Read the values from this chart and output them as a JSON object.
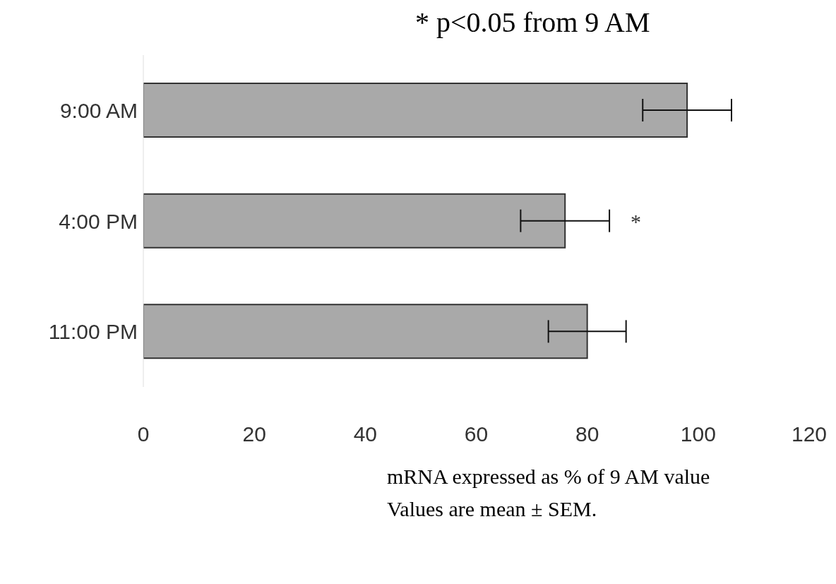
{
  "chart_data": {
    "type": "bar",
    "orientation": "horizontal",
    "title": "* p<0.05 from 9 AM",
    "categories": [
      "9:00 AM",
      "4:00 PM",
      "11:00 PM"
    ],
    "values": [
      98,
      76,
      80
    ],
    "errors": [
      8,
      8,
      7
    ],
    "color": "#a9a9a9",
    "xlim": [
      0,
      120
    ],
    "xticks": [
      0,
      20,
      40,
      60,
      80,
      100,
      120
    ],
    "xlabel": "mRNA expressed as % of 9 AM value",
    "annotations": [
      {
        "text": "*",
        "x": 84,
        "y": "4:00 PM"
      },
      "Values are mean ± SEM."
    ],
    "grid": false,
    "legend": false
  }
}
